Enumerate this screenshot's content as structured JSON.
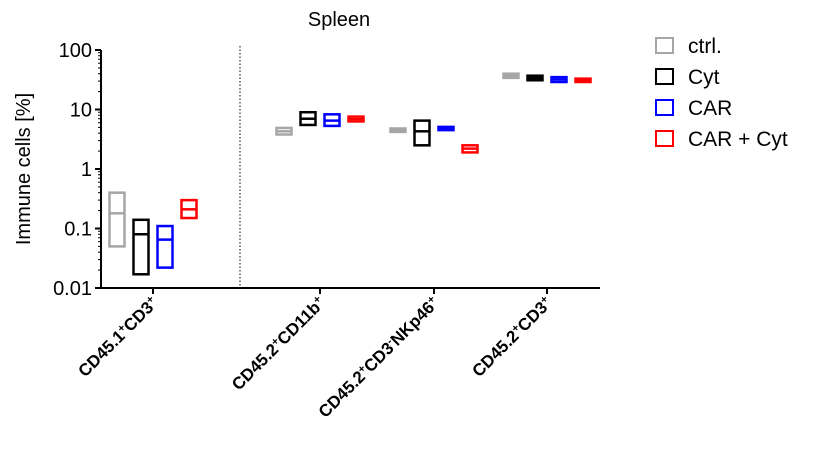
{
  "chart_data": {
    "type": "box",
    "title": "Spleen",
    "ylabel": "Immune cells [%]",
    "yscale": "log",
    "ylim": [
      0.01,
      100
    ],
    "yticks": [
      {
        "value": 0.01,
        "label": "0.01"
      },
      {
        "value": 0.1,
        "label": "0.1"
      },
      {
        "value": 1,
        "label": "1"
      },
      {
        "value": 10,
        "label": "10"
      },
      {
        "value": 100,
        "label": "100"
      }
    ],
    "categories": [
      {
        "key": "cd45_1_cd3",
        "parts": [
          [
            "CD45.1",
            "n"
          ],
          [
            "+",
            "sup"
          ],
          [
            "CD3",
            "n"
          ],
          [
            "+",
            "sup"
          ]
        ]
      },
      {
        "key": "cd45_2_cd11b",
        "parts": [
          [
            "CD45.2",
            "n"
          ],
          [
            "+",
            "sup"
          ],
          [
            "CD11b",
            "n"
          ],
          [
            "+",
            "sup"
          ]
        ]
      },
      {
        "key": "cd45_2_cd3neg_nkp46",
        "parts": [
          [
            "CD45.2",
            "n"
          ],
          [
            "+",
            "sup"
          ],
          [
            "CD3",
            "n"
          ],
          [
            "-",
            "sup"
          ],
          [
            "NKp46",
            "n"
          ],
          [
            "+",
            "sup"
          ]
        ]
      },
      {
        "key": "cd45_2_cd3",
        "parts": [
          [
            "CD45.2",
            "n"
          ],
          [
            "+",
            "sup"
          ],
          [
            "CD3",
            "n"
          ],
          [
            "+",
            "sup"
          ]
        ]
      }
    ],
    "legend_position": "top-right",
    "series": [
      {
        "name": "ctrl.",
        "color": "#a6a6a6",
        "boxes": [
          {
            "min": 0.05,
            "median": 0.18,
            "max": 0.4
          },
          {
            "min": 3.8,
            "median": 4.3,
            "max": 4.9
          },
          {
            "min": 4.2,
            "median": 4.5,
            "max": 4.8
          },
          {
            "min": 34,
            "median": 37,
            "max": 40
          }
        ]
      },
      {
        "name": "Cyt",
        "color": "#000000",
        "boxes": [
          {
            "min": 0.017,
            "median": 0.08,
            "max": 0.14
          },
          {
            "min": 5.5,
            "median": 7.0,
            "max": 9.0
          },
          {
            "min": 2.5,
            "median": 4.3,
            "max": 6.5
          },
          {
            "min": 31,
            "median": 34,
            "max": 37
          }
        ]
      },
      {
        "name": "CAR",
        "color": "#0000ff",
        "boxes": [
          {
            "min": 0.022,
            "median": 0.065,
            "max": 0.11
          },
          {
            "min": 5.3,
            "median": 6.5,
            "max": 8.3
          },
          {
            "min": 4.5,
            "median": 4.8,
            "max": 5.1
          },
          {
            "min": 29,
            "median": 32,
            "max": 35
          }
        ]
      },
      {
        "name": "CAR + Cyt",
        "color": "#ff0000",
        "boxes": [
          {
            "min": 0.15,
            "median": 0.21,
            "max": 0.3
          },
          {
            "min": 6.3,
            "median": 6.9,
            "max": 7.6
          },
          {
            "min": 1.9,
            "median": 2.2,
            "max": 2.5
          },
          {
            "min": 29,
            "median": 31,
            "max": 33
          }
        ]
      }
    ]
  }
}
